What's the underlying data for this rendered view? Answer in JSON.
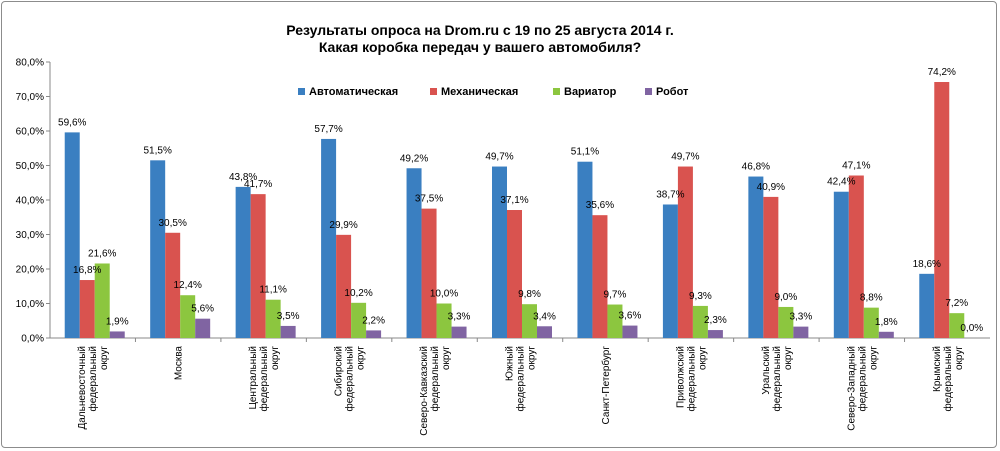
{
  "chart_data": {
    "type": "bar",
    "title_lines": [
      "Результаты опроса на Drom.ru с 19 по 25 августа 2014 г.",
      "Какая коробка передач у вашего автомобиля?"
    ],
    "ylim": [
      0,
      80
    ],
    "y_ticks": [
      "0,0%",
      "10,0%",
      "20,0%",
      "30,0%",
      "40,0%",
      "50,0%",
      "60,0%",
      "70,0%",
      "80,0%"
    ],
    "grid": false,
    "legend_position": "top",
    "categories": [
      [
        "Дальневосточный",
        "федеральный",
        "округ"
      ],
      [
        "Москва"
      ],
      [
        "Центральный",
        "федеральный",
        "округ"
      ],
      [
        "Сибирский",
        "федеральный",
        "округ"
      ],
      [
        "Северо-Кавказский",
        "федеральный",
        "округ"
      ],
      [
        "Южный",
        "федеральный",
        "округ"
      ],
      [
        "Санкт-Петербург"
      ],
      [
        "Приволжский",
        "федеральный",
        "округ"
      ],
      [
        "Уральский",
        "федеральный",
        "округ"
      ],
      [
        "Северо-Западный",
        "федеральный",
        "округ"
      ],
      [
        "Крымский",
        "федеральный",
        "округ"
      ]
    ],
    "series": [
      {
        "name": "Автоматическая",
        "color": "#3a7fc1",
        "values": [
          59.6,
          51.5,
          43.8,
          57.7,
          49.2,
          49.7,
          51.1,
          38.7,
          46.8,
          42.4,
          18.6
        ],
        "labels": [
          "59,6%",
          "51,5%",
          "43,8%",
          "57,7%",
          "49,2%",
          "49,7%",
          "51,1%",
          "38,7%",
          "46,8%",
          "42,4%",
          "18,6%"
        ]
      },
      {
        "name": "Механическая",
        "color": "#d9534f",
        "values": [
          16.8,
          30.5,
          41.7,
          29.9,
          37.5,
          37.1,
          35.6,
          49.7,
          40.9,
          47.1,
          74.2
        ],
        "labels": [
          "16,8%",
          "30,5%",
          "41,7%",
          "29,9%",
          "37,5%",
          "37,1%",
          "35,6%",
          "49,7%",
          "40,9%",
          "47,1%",
          "74,2%"
        ]
      },
      {
        "name": "Вариатор",
        "color": "#8cc63f",
        "values": [
          21.6,
          12.4,
          11.1,
          10.2,
          10.0,
          9.8,
          9.7,
          9.3,
          9.0,
          8.8,
          7.2
        ],
        "labels": [
          "21,6%",
          "12,4%",
          "11,1%",
          "10,2%",
          "10,0%",
          "9,8%",
          "9,7%",
          "9,3%",
          "9,0%",
          "8,8%",
          "7,2%"
        ]
      },
      {
        "name": "Робот",
        "color": "#8064a2",
        "values": [
          1.9,
          5.6,
          3.5,
          2.2,
          3.3,
          3.4,
          3.6,
          2.3,
          3.3,
          1.8,
          0.0
        ],
        "labels": [
          "1,9%",
          "5,6%",
          "3,5%",
          "2,2%",
          "3,3%",
          "3,4%",
          "3,6%",
          "2,3%",
          "3,3%",
          "1,8%",
          "0,0%"
        ]
      }
    ]
  }
}
